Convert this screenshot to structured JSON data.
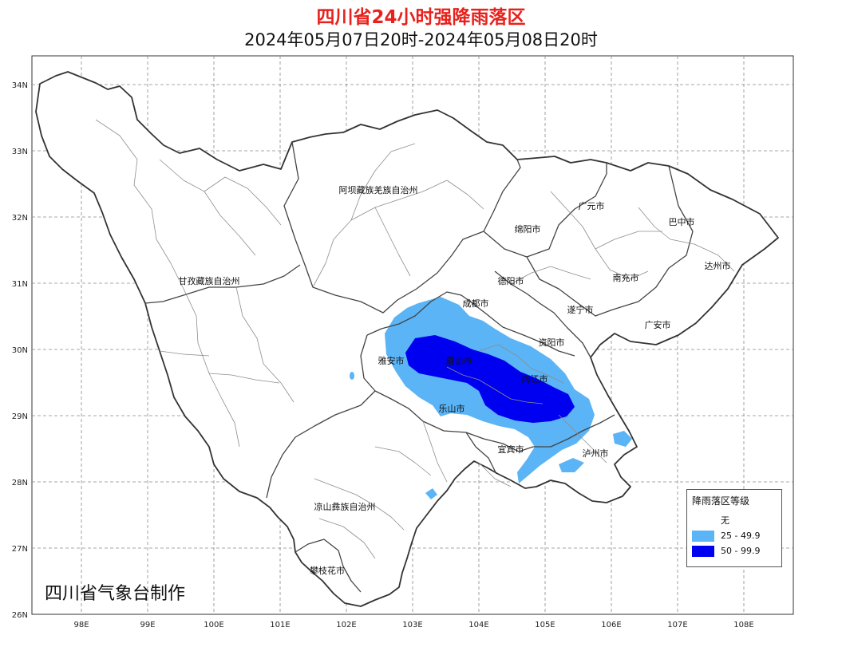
{
  "header": {
    "title": "四川省24小时强降雨落区",
    "subtitle": "2024年05月07日20时-2024年05月08日20时"
  },
  "axes": {
    "lon_ticks": [
      "98E",
      "99E",
      "100E",
      "101E",
      "102E",
      "103E",
      "104E",
      "105E",
      "106E",
      "107E",
      "108E"
    ],
    "lat_ticks": [
      "34N",
      "33N",
      "32N",
      "31N",
      "30N",
      "29N",
      "28N",
      "27N",
      "26N"
    ]
  },
  "cities": [
    {
      "id": "aba",
      "name": "阿坝藏族羌族自治州"
    },
    {
      "id": "ganzi",
      "name": "甘孜藏族自治州"
    },
    {
      "id": "guangyuan",
      "name": "广元市"
    },
    {
      "id": "bazhong",
      "name": "巴中市"
    },
    {
      "id": "mianyang",
      "name": "绵阳市"
    },
    {
      "id": "dazhou",
      "name": "达州市"
    },
    {
      "id": "deyang",
      "name": "德阳市"
    },
    {
      "id": "nanchong",
      "name": "南充市"
    },
    {
      "id": "chengdu",
      "name": "成都市"
    },
    {
      "id": "suining",
      "name": "遂宁市"
    },
    {
      "id": "guangan",
      "name": "广安市"
    },
    {
      "id": "ziyang",
      "name": "资阳市"
    },
    {
      "id": "yaan",
      "name": "雅安市"
    },
    {
      "id": "meishan",
      "name": "眉山市"
    },
    {
      "id": "neijiang",
      "name": "内江市"
    },
    {
      "id": "leshan",
      "name": "乐山市"
    },
    {
      "id": "yibin",
      "name": "宜宾市"
    },
    {
      "id": "luzhou",
      "name": "泸州市"
    },
    {
      "id": "liangshan",
      "name": "凉山彝族自治州"
    },
    {
      "id": "panzhihua",
      "name": "攀枝花市"
    }
  ],
  "legend": {
    "title": "降雨落区等级",
    "items": [
      {
        "label": "无",
        "color": "#ffffff"
      },
      {
        "label": "25 - 49.9",
        "color": "#5ab4f5"
      },
      {
        "label": "50 - 99.9",
        "color": "#0000f0"
      }
    ]
  },
  "credit": "四川省气象台制作",
  "colors": {
    "title": "#e8211c",
    "heavy": "#5ab4f5",
    "rainstorm": "#0000f0",
    "boundary": "#333333",
    "county": "#888888"
  }
}
